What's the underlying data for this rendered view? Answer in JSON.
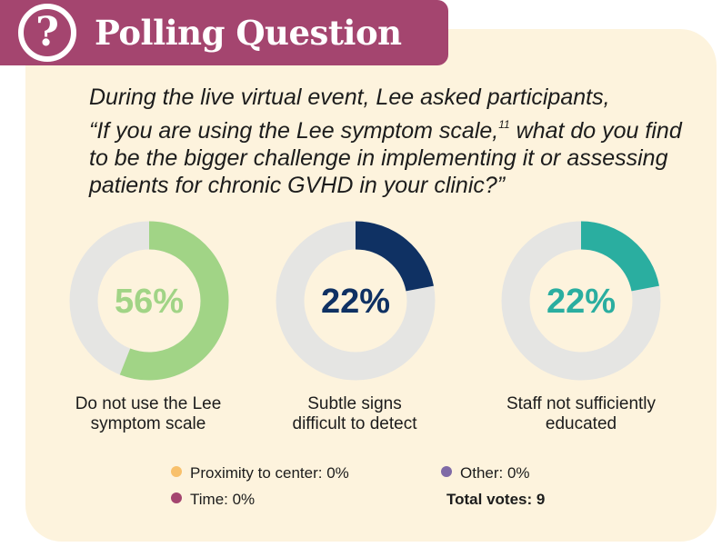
{
  "header": {
    "title": "Polling Question",
    "icon": "question-mark-icon",
    "icon_glyph": "?"
  },
  "question": {
    "line1": "During the live virtual event, Lee asked participants,",
    "line2a": "“If you are using the Lee symptom scale,",
    "ref": "11",
    "line2b": " what do you find",
    "line3": "to be the bigger challenge in implementing it or assessing",
    "line4": "patients for chronic GVHD in your clinic?”"
  },
  "chart_data": {
    "type": "pie",
    "style": "donut",
    "title": "Polling Question",
    "categories": [
      "Do not use the Lee symptom scale",
      "Subtle signs difficult to detect",
      "Staff not sufficiently educated"
    ],
    "values": [
      56,
      22,
      22
    ],
    "value_labels": [
      "56%",
      "22%",
      "22%"
    ],
    "label_lines": [
      [
        "Do not use the Lee",
        "symptom scale"
      ],
      [
        "Subtle signs",
        "difficult to detect"
      ],
      [
        "Staff not sufficiently",
        "educated"
      ]
    ],
    "colors": [
      "#a1d486",
      "#0f3163",
      "#2aaea0"
    ],
    "track_color": "#e5e5e3",
    "legend": [
      {
        "label": "Proximity to center: 0%",
        "value": 0,
        "color": "#f8c06b"
      },
      {
        "label": "Time: 0%",
        "value": 0,
        "color": "#a4456f"
      },
      {
        "label": "Other: 0%",
        "value": 0,
        "color": "#7f6aa6"
      }
    ],
    "total_votes": "Total votes: 9"
  }
}
